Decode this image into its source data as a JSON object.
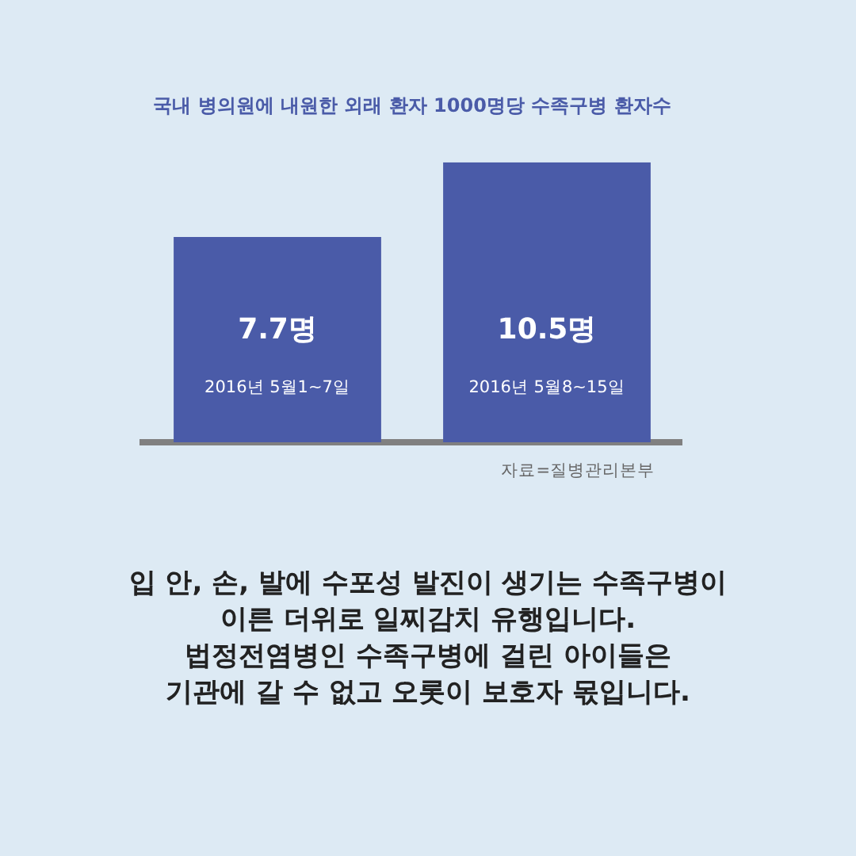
{
  "chart_data": {
    "type": "bar",
    "title": "국내 병의원에 내원한 외래 환자 1000명당 수족구병 환자수",
    "categories": [
      "2016년 5월1~7일",
      "2016년 5월8~15일"
    ],
    "values": [
      7.7,
      10.5
    ],
    "value_labels": [
      "7.7명",
      "10.5명"
    ],
    "color": "#4a5ba8",
    "grid": false,
    "legend": false,
    "annotations": [
      "자료=질병관리본부",
      "입 안, 손, 발에 수포성 발진이 생기는 수족구병이\n이른 더위로 일찌감치 유행입니다.\n법정전염병인 수족구병에 걸린 아이들은\n기관에 갈 수 없고 오롯이 보호자 몫입니다."
    ]
  }
}
